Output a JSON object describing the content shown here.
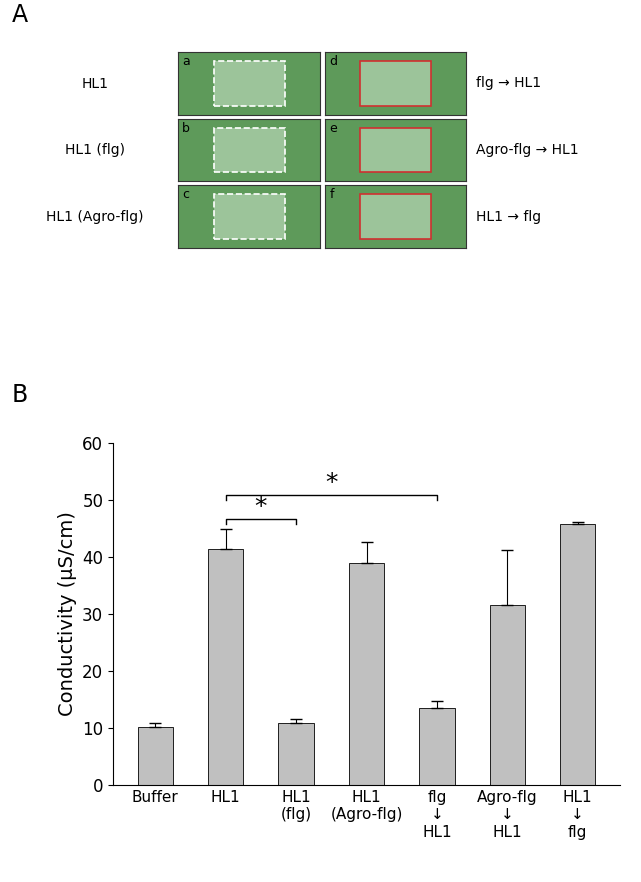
{
  "panel_labels": [
    "A",
    "B"
  ],
  "panel_a": {
    "images": [
      {
        "letter": "a",
        "label": "HL1",
        "side": "left"
      },
      {
        "letter": "b",
        "label": "HL1 (flg)",
        "side": "left"
      },
      {
        "letter": "c",
        "label": "HL1 (Agro-flg)",
        "side": "left"
      },
      {
        "letter": "d",
        "label": "flg → HL1",
        "side": "right"
      },
      {
        "letter": "e",
        "label": "Agro-flg → HL1",
        "side": "right"
      },
      {
        "letter": "f",
        "label": "HL1 → flg",
        "side": "right"
      }
    ]
  },
  "chart_data": {
    "type": "bar",
    "y_label": "Conductivity (μS/cm)",
    "categories": [
      "Buffer",
      "HL1",
      "HL1\n(flg)",
      "HL1\n(Agro-flg)",
      "flg\n↓\nHL1",
      "Agro-flg\n↓\nHL1",
      "HL1\n↓\nflg"
    ],
    "values": [
      10.1,
      41.4,
      10.8,
      39.0,
      13.5,
      31.6,
      45.8
    ],
    "errors": [
      0.8,
      3.5,
      0.7,
      3.6,
      1.3,
      9.6,
      0.4
    ],
    "color": "#c0c0c0",
    "ylim": [
      0,
      60
    ],
    "yticks": [
      0,
      10,
      20,
      30,
      40,
      50,
      60
    ],
    "significance": [
      {
        "between": [
          "HL1",
          "HL1\n(flg)"
        ],
        "label": "*"
      },
      {
        "between": [
          "HL1",
          "flg\n↓\nHL1"
        ],
        "label": "*"
      }
    ]
  }
}
